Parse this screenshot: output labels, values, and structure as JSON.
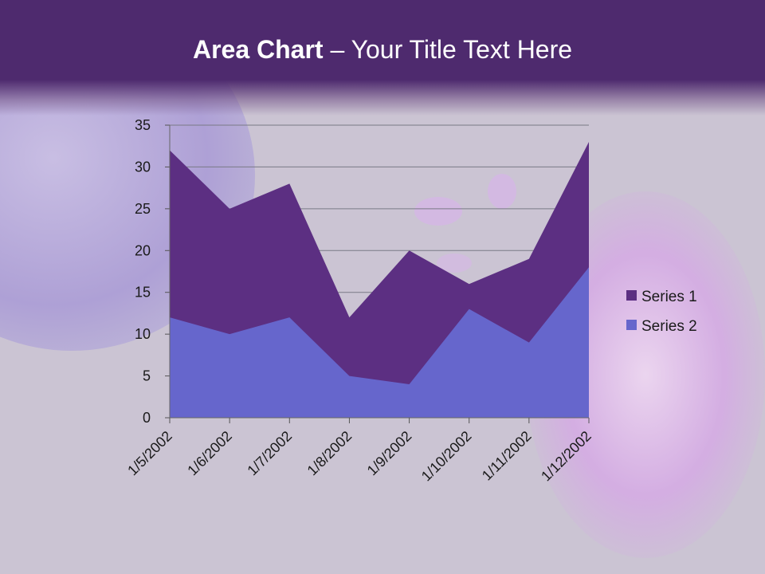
{
  "slide": {
    "title_bold": "Area Chart",
    "title_rest": " – Your Title Text Here"
  },
  "colors": {
    "header": "#4e2a6e",
    "series1": "#5c2f82",
    "series2": "#6666cc"
  },
  "chart_data": {
    "type": "area",
    "categories": [
      "1/5/2002",
      "1/6/2002",
      "1/7/2002",
      "1/8/2002",
      "1/9/2002",
      "1/10/2002",
      "1/11/2002",
      "1/12/2002"
    ],
    "series": [
      {
        "name": "Series 1",
        "values": [
          32,
          25,
          28,
          12,
          20,
          16,
          19,
          33
        ]
      },
      {
        "name": "Series 2",
        "values": [
          12,
          10,
          12,
          5,
          4,
          13,
          9,
          18
        ]
      }
    ],
    "ylim": [
      0,
      35
    ],
    "yticks": [
      0,
      5,
      10,
      15,
      20,
      25,
      30,
      35
    ],
    "grid": true,
    "legend": "right"
  }
}
